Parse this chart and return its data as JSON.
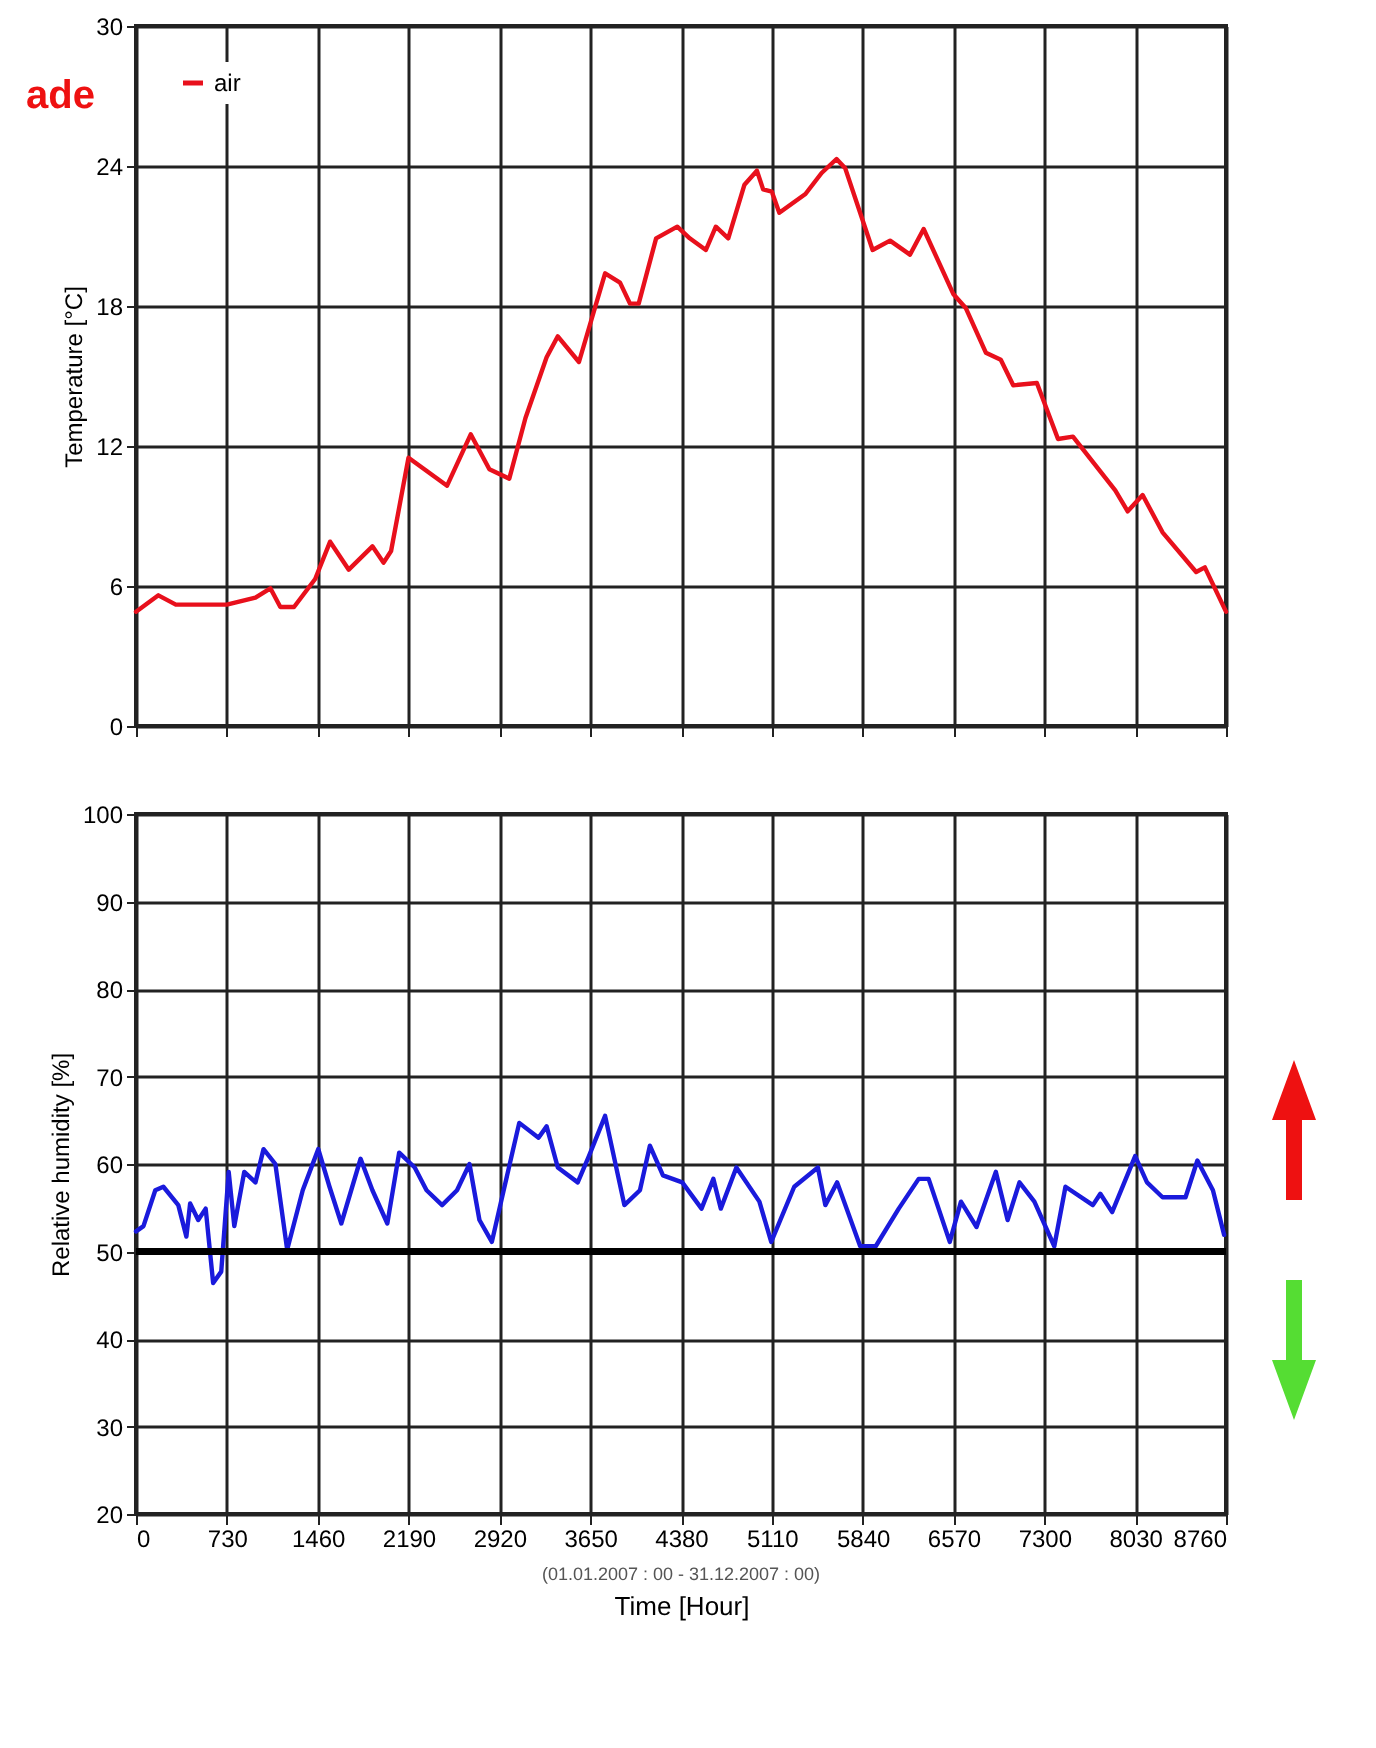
{
  "chart_data": [
    {
      "type": "line",
      "ylabel": "Temperature [°C]",
      "annotations": [
        "ade"
      ],
      "legend": "top left",
      "grid": true,
      "tick_labels": "y",
      "xlim": [
        0,
        8760
      ],
      "xticks": [
        0,
        730,
        1460,
        2190,
        2920,
        3650,
        4380,
        5110,
        5840,
        6570,
        7300,
        8030,
        8760
      ],
      "ylim": [
        0,
        30
      ],
      "yticks": [
        0,
        6,
        12,
        18,
        24,
        30
      ],
      "x": [
        0,
        180,
        320,
        730,
        960,
        1080,
        1160,
        1270,
        1440,
        1560,
        1710,
        1900,
        1990,
        2050,
        2190,
        2500,
        2690,
        2840,
        3000,
        3130,
        3300,
        3390,
        3560,
        3770,
        3890,
        3970,
        4040,
        4180,
        4350,
        4450,
        4580,
        4660,
        4760,
        4890,
        4990,
        5040,
        5110,
        5170,
        5380,
        5510,
        5630,
        5700,
        5920,
        6060,
        6220,
        6330,
        6570,
        6670,
        6830,
        6950,
        7050,
        7240,
        7410,
        7530,
        7870,
        7970,
        8090,
        8250,
        8520,
        8590,
        8760
      ],
      "series": [
        {
          "name": "air",
          "color": "#e8101c",
          "values": [
            4.9,
            5.6,
            5.2,
            5.2,
            5.5,
            5.9,
            5.1,
            5.1,
            6.3,
            7.9,
            6.7,
            7.7,
            7.0,
            7.5,
            11.5,
            10.3,
            12.5,
            11.0,
            10.6,
            13.2,
            15.8,
            16.7,
            15.6,
            19.4,
            19.0,
            18.1,
            18.1,
            20.9,
            21.4,
            20.9,
            20.4,
            21.4,
            20.9,
            23.2,
            23.8,
            23.0,
            22.9,
            22.0,
            22.8,
            23.7,
            24.3,
            23.9,
            20.4,
            20.8,
            20.2,
            21.3,
            18.5,
            17.9,
            16.0,
            15.7,
            14.6,
            14.7,
            12.3,
            12.4,
            10.1,
            9.2,
            9.9,
            8.3,
            6.6,
            6.8,
            4.9
          ]
        }
      ]
    },
    {
      "type": "line",
      "ylabel": "Relative humidity [%]",
      "xlabel": "Time  [Hour]",
      "annotations": [
        "(01.01.2007 : 00 - 31.12.2007 : 00)"
      ],
      "grid": true,
      "xlim": [
        0,
        8760
      ],
      "xticks": [
        0,
        730,
        1460,
        2190,
        2920,
        3650,
        4380,
        5110,
        5840,
        6570,
        7300,
        8030,
        8760
      ],
      "ylim": [
        20,
        100
      ],
      "yticks": [
        20,
        30,
        40,
        50,
        60,
        70,
        80,
        90,
        100
      ],
      "ref_lines": [
        {
          "axis": "y",
          "value": 50,
          "color": "#000000"
        }
      ],
      "x": [
        0,
        60,
        155,
        220,
        340,
        405,
        435,
        500,
        560,
        620,
        685,
        745,
        790,
        870,
        960,
        1025,
        1120,
        1215,
        1340,
        1465,
        1555,
        1650,
        1805,
        1900,
        2020,
        2115,
        2240,
        2335,
        2460,
        2580,
        2680,
        2760,
        2860,
        2955,
        3080,
        3235,
        3300,
        3390,
        3550,
        3640,
        3770,
        3925,
        4050,
        4130,
        4235,
        4390,
        4545,
        4640,
        4700,
        4825,
        5010,
        5105,
        5290,
        5480,
        5540,
        5635,
        5820,
        5945,
        6130,
        6290,
        6370,
        6540,
        6630,
        6755,
        6910,
        7005,
        7100,
        7220,
        7380,
        7470,
        7690,
        7750,
        7845,
        8030,
        8125,
        8250,
        8435,
        8530,
        8655,
        8745
      ],
      "series": [
        {
          "color": "#1a1adc",
          "values": [
            52.3,
            52.9,
            57.0,
            57.4,
            55.3,
            51.7,
            55.5,
            53.6,
            54.9,
            46.4,
            47.7,
            59.1,
            52.9,
            59.1,
            57.9,
            61.7,
            60.0,
            50.2,
            57.0,
            61.7,
            57.4,
            53.2,
            60.6,
            57.0,
            53.2,
            61.3,
            59.6,
            57.0,
            55.3,
            57.0,
            60.0,
            53.6,
            51.1,
            57.0,
            64.7,
            63.0,
            64.3,
            59.6,
            57.9,
            60.9,
            65.5,
            55.3,
            57.0,
            62.1,
            58.7,
            57.9,
            54.9,
            58.3,
            54.9,
            59.6,
            55.7,
            51.1,
            57.4,
            59.6,
            55.3,
            57.9,
            50.6,
            50.6,
            54.9,
            58.3,
            58.3,
            51.1,
            55.7,
            52.8,
            59.1,
            53.6,
            57.9,
            55.7,
            50.6,
            57.4,
            55.3,
            56.6,
            54.5,
            60.9,
            57.9,
            56.2,
            56.2,
            60.4,
            57.0,
            51.9
          ]
        }
      ]
    }
  ]
}
